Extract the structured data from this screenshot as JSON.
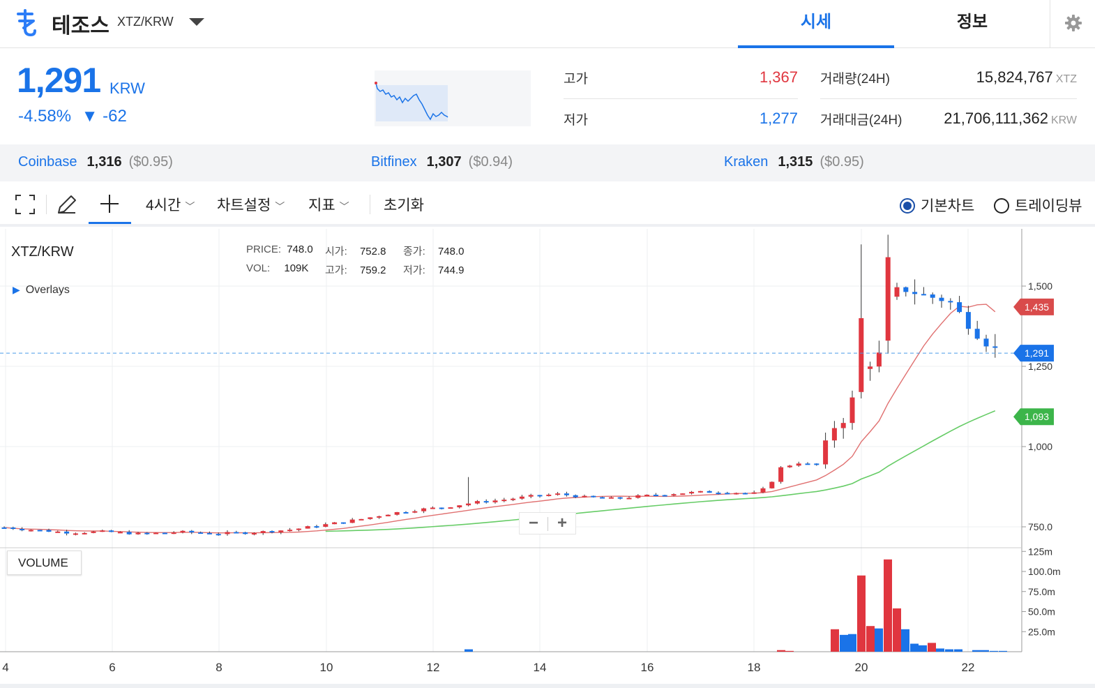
{
  "header": {
    "coin_name": "테조스",
    "pair": "XTZ/KRW",
    "tabs": [
      "시세",
      "정보"
    ]
  },
  "price": {
    "current": "1,291",
    "unit": "KRW",
    "change_pct": "-4.58%",
    "change_abs": "▼ -62"
  },
  "stats": {
    "high_label": "고가",
    "high_value": "1,367",
    "low_label": "저가",
    "low_value": "1,277",
    "volume_label": "거래량(24H)",
    "volume_value": "15,824,767",
    "volume_unit": "XTZ",
    "amount_label": "거래대금(24H)",
    "amount_value": "21,706,111,362",
    "amount_unit": "KRW"
  },
  "exchanges": [
    {
      "name": "Coinbase",
      "price": "1,316",
      "usd": "($0.95)"
    },
    {
      "name": "Bitfinex",
      "price": "1,307",
      "usd": "($0.94)"
    },
    {
      "name": "Kraken",
      "price": "1,315",
      "usd": "($0.95)"
    }
  ],
  "toolbar": {
    "interval": "4시간",
    "chart_settings": "차트설정",
    "indicators": "지표",
    "reset": "초기화",
    "radio_basic": "기본차트",
    "radio_tradingview": "트레이딩뷰"
  },
  "chart": {
    "title": "XTZ/KRW",
    "overlays": "Overlays",
    "volume_label": "VOLUME",
    "ohlc": {
      "price_k": "PRICE:",
      "price_v": "748.0",
      "open_k": "시가:",
      "open_v": "752.8",
      "close_k": "종가:",
      "close_v": "748.0",
      "vol_k": "VOL:",
      "vol_v": "109K",
      "high_k": "고가:",
      "high_v": "759.2",
      "low_k": "저가:",
      "low_v": "744.9"
    },
    "zoom_out": "−",
    "zoom_in": "+"
  },
  "chart_data": {
    "type": "candlestick",
    "y_ticks": [
      "1,500",
      "1,250",
      "1,000",
      "750.0"
    ],
    "y_tick_values": [
      1500,
      1250,
      1000,
      750
    ],
    "x_ticks": [
      "4",
      "6",
      "8",
      "10",
      "12",
      "14",
      "16",
      "18",
      "20",
      "22"
    ],
    "price_tags": [
      {
        "label": "1,435",
        "value": 1435,
        "color": "#d94b4b"
      },
      {
        "label": "1,291",
        "value": 1291,
        "color": "#1a73e8"
      },
      {
        "label": "1,093",
        "value": 1093,
        "color": "#3cb54a"
      }
    ],
    "volume_ticks": [
      "125m",
      "100.0m",
      "75.0m",
      "50.0m",
      "25.0m"
    ],
    "volume_tick_values": [
      125,
      100,
      75,
      50,
      25
    ],
    "up_color": "#e0363f",
    "down_color": "#1a73e8"
  },
  "colors": {
    "accent": "#1a73e8",
    "up": "#e0363f",
    "ma_short": "#e07070",
    "ma_long": "#66cc66"
  }
}
